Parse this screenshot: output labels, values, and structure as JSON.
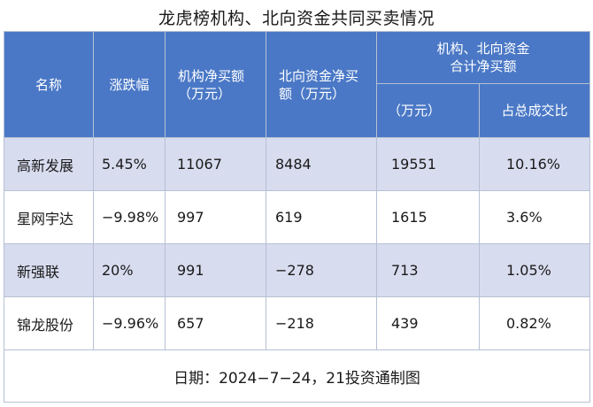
{
  "title": "龙虎榜机构、北向资金共同买卖情况",
  "header": {
    "name": "名称",
    "change": "涨跌幅",
    "inst_line1": "机构净买额",
    "inst_line2": "（万元）",
    "north_line1": "北向资金净买",
    "north_line2": "额（万元）",
    "combined_line1": "机构、北向资金",
    "combined_line2": "合计净买额",
    "combined_unit": "（万元）",
    "share": "占总成交比"
  },
  "rows": [
    {
      "name": "高新发展",
      "change": "5.45%",
      "inst": "11067",
      "north": "8484",
      "combined": "19551",
      "share": "10.16%"
    },
    {
      "name": "星网宇达",
      "change": "−9.98%",
      "inst": "997",
      "north": "619",
      "combined": "1615",
      "share": "3.6%"
    },
    {
      "name": "新强联",
      "change": "20%",
      "inst": "991",
      "north": "−278",
      "combined": "713",
      "share": "1.05%"
    },
    {
      "name": "锦龙股份",
      "change": "−9.96%",
      "inst": "657",
      "north": "−218",
      "combined": "439",
      "share": "0.82%"
    }
  ],
  "footer": "日期：2024−7−24，21投资通制图",
  "colors": {
    "header_bg": "#4a78c6",
    "alt_row_bg": "#d8dcef",
    "border": "#b7c0d3"
  }
}
